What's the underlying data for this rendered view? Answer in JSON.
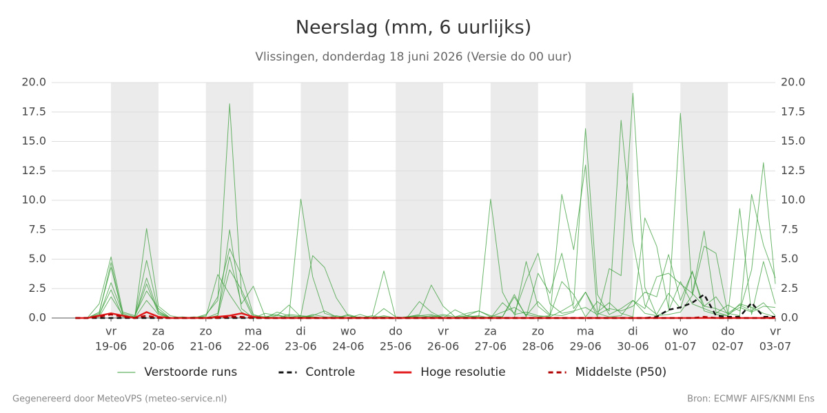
{
  "chart_data": {
    "type": "line",
    "title": "Neerslag (mm, 6 uurlijks)",
    "subtitle": "Vlissingen, donderdag 18 juni 2026 (Versie do 00 uur)",
    "footer_left": "Gegenereerd door MeteoVPS (meteo-service.nl)",
    "footer_right": "Bron: ECMWF AIFS/KNMI Ens",
    "categories": [
      null,
      null,
      null,
      "19-06",
      null,
      null,
      null,
      "20-06",
      null,
      null,
      null,
      "21-06",
      null,
      null,
      null,
      "22-06",
      null,
      null,
      null,
      "23-06",
      null,
      null,
      null,
      "24-06",
      null,
      null,
      null,
      "25-06",
      null,
      null,
      null,
      "26-06",
      null,
      null,
      null,
      "27-06",
      null,
      null,
      null,
      "28-06",
      null,
      null,
      null,
      "29-06",
      null,
      null,
      null,
      "30-06",
      null,
      null,
      null,
      "01-07",
      null,
      null,
      null,
      "02-07",
      null,
      null,
      null,
      "03-07"
    ],
    "category_weekdays": [
      null,
      null,
      null,
      "vr",
      null,
      null,
      null,
      "za",
      null,
      null,
      null,
      "zo",
      null,
      null,
      null,
      "ma",
      null,
      null,
      null,
      "di",
      null,
      null,
      null,
      "wo",
      null,
      null,
      null,
      "do",
      null,
      null,
      null,
      "vr",
      null,
      null,
      null,
      "za",
      null,
      null,
      null,
      "zo",
      null,
      null,
      null,
      "ma",
      null,
      null,
      null,
      "di",
      null,
      null,
      null,
      "wo",
      null,
      null,
      null,
      "do",
      null,
      null,
      null,
      "vr"
    ],
    "ylim": [
      0,
      20
    ],
    "yticks": [
      {
        "value": 0,
        "label": "0.0"
      },
      {
        "value": 2.5,
        "label": "2.5"
      },
      {
        "value": 5,
        "label": "5.0"
      },
      {
        "value": 7.5,
        "label": "7.5"
      },
      {
        "value": 10,
        "label": "10.0"
      },
      {
        "value": 12.5,
        "label": "12.5"
      },
      {
        "value": 15,
        "label": "15.0"
      },
      {
        "value": 17.5,
        "label": "17.5"
      },
      {
        "value": 20,
        "label": "20.0"
      }
    ],
    "grid": true,
    "legend": "bottom",
    "series": [
      {
        "name": "Verstoorde runs",
        "color": "#3a9e3a",
        "style": "solid",
        "members": [
          [
            0,
            0,
            1.2,
            5.2,
            0.5,
            0.2,
            2.3,
            0.8,
            0,
            0,
            0,
            0.3,
            1.5,
            18.2,
            2.1,
            0,
            0,
            0.2,
            0.1,
            10.1,
            3.5,
            0.4,
            0.1,
            0,
            0,
            0,
            0,
            0,
            0.1,
            0.2,
            0.3,
            0,
            0,
            0,
            0.1,
            10.1,
            2.2,
            0.3,
            0.5,
            0.2,
            0.1,
            0.6,
            1.2,
            16.1,
            2.0,
            0.3,
            0.8,
            1.5,
            0.4,
            0.2,
            0.6,
            3.1,
            1.2,
            0.8,
            0.4,
            1.1,
            0.6,
            4.1,
            13.2,
            2.9
          ],
          [
            0,
            0,
            0.5,
            4.3,
            0.3,
            0,
            7.6,
            1.0,
            0.2,
            0,
            0,
            0.1,
            3.7,
            2.0,
            0.5,
            0,
            0.1,
            0.3,
            0,
            0.2,
            5.3,
            4.3,
            1.7,
            0.2,
            0,
            0.1,
            4.0,
            0,
            0.1,
            0.3,
            2.8,
            1.0,
            0.1,
            0.2,
            0.6,
            0.1,
            0,
            0,
            4.8,
            1.0,
            0.2,
            10.5,
            5.8,
            13.0,
            0.5,
            1.3,
            0.4,
            0.1,
            8.5,
            6.1,
            0.8,
            17.4,
            2.0,
            7.4,
            0.5,
            0.2,
            9.3,
            0.3,
            4.8,
            1.2
          ],
          [
            0,
            0,
            0.3,
            2.4,
            0.1,
            0.1,
            4.9,
            0.6,
            0,
            0,
            0,
            0,
            0.2,
            7.5,
            0.8,
            0,
            0.4,
            0.2,
            1.1,
            0.1,
            0.1,
            0,
            0,
            0.3,
            0,
            0.2,
            0,
            0,
            0.1,
            1.4,
            0.5,
            0,
            0,
            0.1,
            0.2,
            0,
            0.1,
            2.0,
            0.1,
            3.8,
            2.1,
            5.5,
            0.8,
            2.2,
            0.1,
            4.2,
            3.6,
            19.1,
            2.6,
            0.2,
            0.3,
            0.5,
            1.9,
            6.1,
            5.5,
            0.4,
            0.2,
            10.5,
            6.2,
            3.4
          ],
          [
            0,
            0,
            0.2,
            3.0,
            0.4,
            0.1,
            3.4,
            0.5,
            0,
            0.1,
            0,
            0.2,
            1.8,
            5.9,
            3.6,
            0.3,
            0,
            0.5,
            0.2,
            0.1,
            0.2,
            0.6,
            0.1,
            0,
            0.3,
            0,
            0.8,
            0.1,
            0,
            0,
            0.2,
            0,
            0.7,
            0.2,
            0,
            0.1,
            0.5,
            0.9,
            0.3,
            0.1,
            0.2,
            3.1,
            2.0,
            0.1,
            1.4,
            0.6,
            16.8,
            6.5,
            1.1,
            0.3,
            2.1,
            0.8,
            4.0,
            0.6,
            0.3,
            0.2,
            1.2,
            0.9,
            0.4,
            0.1
          ],
          [
            0,
            0,
            0.1,
            1.8,
            0.2,
            0,
            1.5,
            0.3,
            0,
            0,
            0,
            0,
            0.4,
            5.2,
            1.2,
            2.7,
            0.1,
            0,
            0.3,
            0.2,
            0.1,
            0,
            0.2,
            0,
            0.1,
            0,
            0.2,
            0,
            0.1,
            0.2,
            0.1,
            0.3,
            0.1,
            0.4,
            0.6,
            0.2,
            0.1,
            1.8,
            0.2,
            1.4,
            0.3,
            0.2,
            0.5,
            2.2,
            0.4,
            0.1,
            0.2,
            1.5,
            0.8,
            3.5,
            3.8,
            2.9,
            2.1,
            1.0,
            0.8,
            0.4,
            1.1,
            0.6,
            1.3,
            0.2
          ],
          [
            0,
            0,
            0.4,
            4.7,
            0.2,
            0.1,
            2.9,
            0.4,
            0,
            0,
            0.1,
            0,
            0.2,
            4.1,
            2.4,
            0.2,
            0.1,
            0,
            0.1,
            0,
            0.3,
            0.1,
            0,
            0.2,
            0,
            0,
            0.1,
            0,
            0.1,
            0.1,
            0,
            0.2,
            0,
            0.2,
            0.1,
            0,
            1.3,
            0.4,
            3.2,
            5.5,
            1.2,
            0.4,
            0.6,
            0.9,
            0.3,
            0.8,
            0.6,
            1.0,
            2.2,
            1.8,
            5.4,
            1.5,
            3.9,
            1.0,
            1.8,
            0.3,
            0.9,
            0.5,
            1.0,
            0.9
          ]
        ]
      },
      {
        "name": "Controle",
        "color": "#111111",
        "style": "dashed",
        "values": [
          0,
          0,
          0,
          0,
          0,
          0,
          0,
          0,
          0,
          0,
          0,
          0,
          0,
          0,
          0,
          0,
          0,
          0,
          0,
          0,
          0,
          0,
          0,
          0,
          0,
          0,
          0,
          0,
          0,
          0,
          0,
          0,
          0,
          0,
          0,
          0,
          0,
          0,
          0,
          0,
          0,
          0,
          0,
          0,
          0,
          0,
          0,
          0,
          0,
          0.1,
          0.7,
          0.9,
          1.3,
          2.0,
          0.2,
          0.1,
          0.1,
          1.3,
          0.1,
          0.1
        ]
      },
      {
        "name": "Hoge resolutie",
        "color": "#e31a1c",
        "style": "solid",
        "values": [
          0,
          0,
          0.2,
          0.4,
          0.2,
          0,
          0.5,
          0.1,
          0,
          0,
          0,
          0,
          0.1,
          0.2,
          0.4,
          0.1,
          0,
          0,
          0,
          0,
          0,
          0,
          0,
          0,
          0,
          0,
          0,
          0,
          0,
          0,
          0,
          0,
          0,
          0,
          0,
          0,
          0,
          0,
          0,
          0,
          0,
          0,
          0,
          0,
          0,
          0,
          0,
          0,
          0,
          0,
          0,
          0,
          0,
          0,
          0,
          0,
          0,
          0,
          0,
          0
        ]
      },
      {
        "name": "Middelste (P50)",
        "color": "#b00000",
        "style": "dashed",
        "values": [
          0,
          0,
          0.1,
          0.3,
          0.1,
          0,
          0.2,
          0,
          0,
          0,
          0,
          0,
          0,
          0.1,
          0.1,
          0,
          0,
          0,
          0,
          0,
          0,
          0,
          0,
          0,
          0,
          0,
          0,
          0,
          0,
          0,
          0,
          0,
          0,
          0,
          0,
          0,
          0,
          0,
          0,
          0,
          0,
          0,
          0,
          0,
          0,
          0,
          0,
          0,
          0,
          0,
          0,
          0,
          0,
          0.1,
          0,
          0,
          0,
          0,
          0,
          0
        ]
      }
    ]
  }
}
